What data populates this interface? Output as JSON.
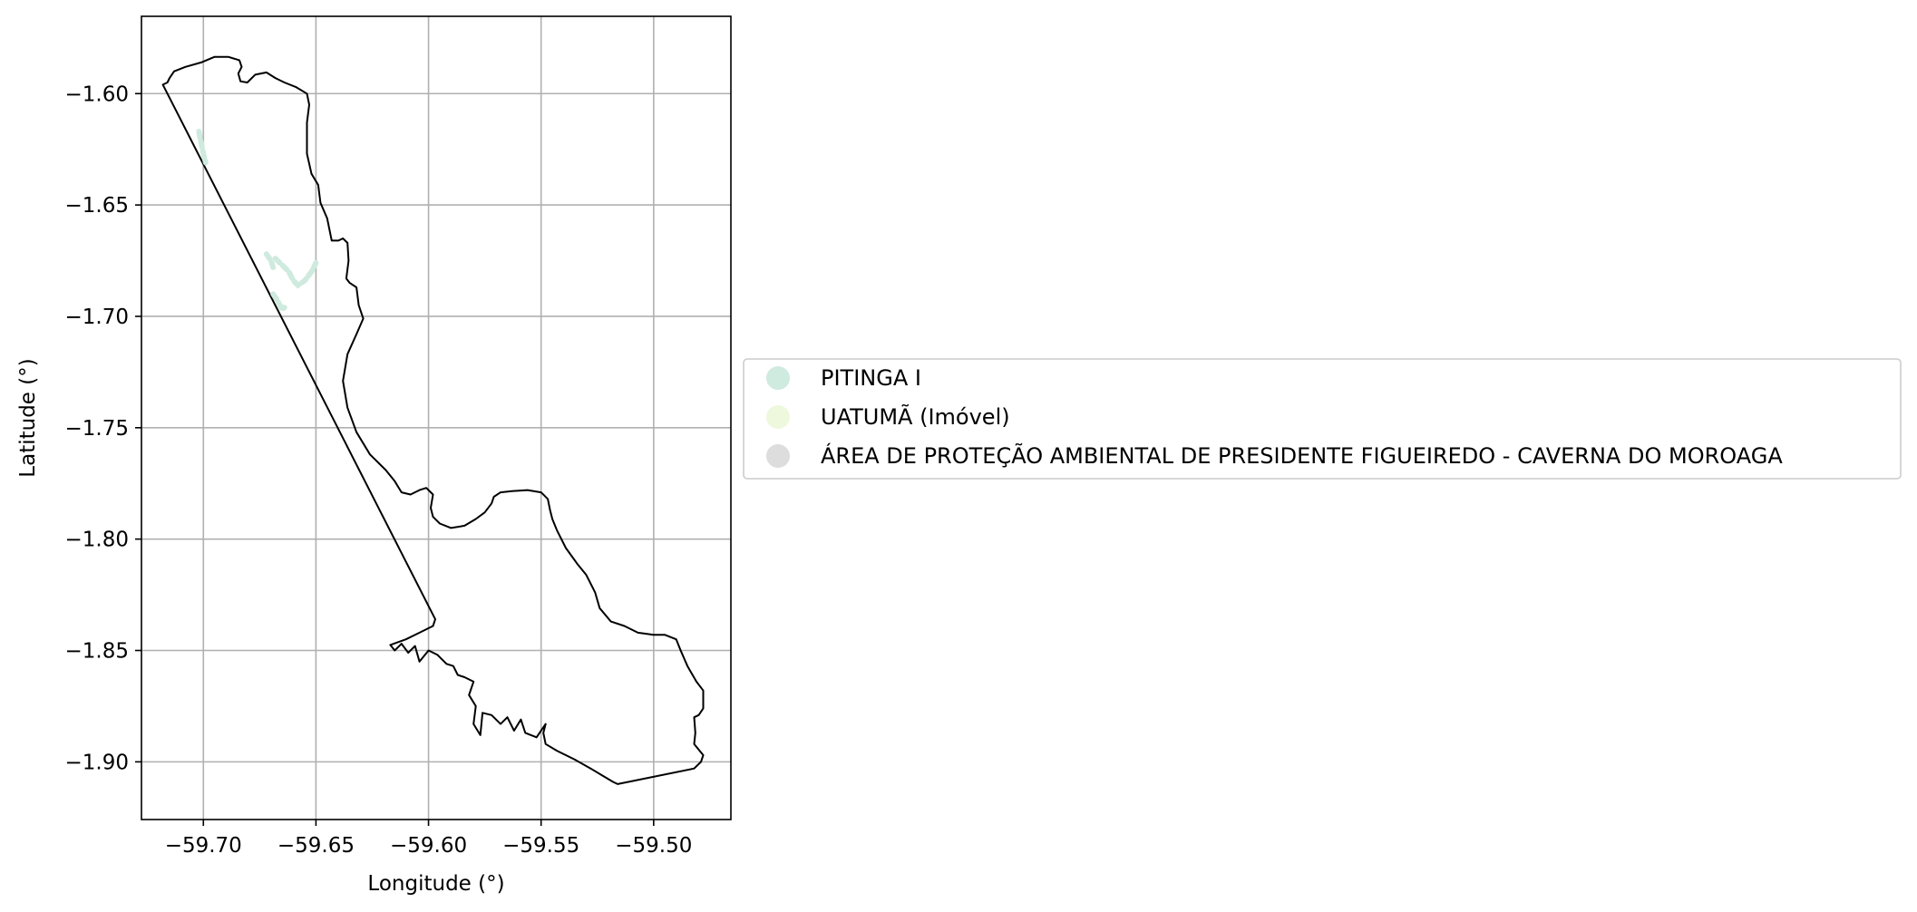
{
  "map": {
    "xlabel": "Longitude (°)",
    "ylabel": "Latitude (°)",
    "xlim": [
      -59.7275,
      -59.4657
    ],
    "ylim": [
      -1.9259,
      -1.5653
    ],
    "grid": true,
    "xticks": [
      -59.7,
      -59.65,
      -59.6,
      -59.55,
      -59.5
    ],
    "yticks": [
      -1.6,
      -1.65,
      -1.7,
      -1.75,
      -1.8,
      -1.85,
      -1.9
    ],
    "xtick_labels": [
      "−59.70",
      "−59.65",
      "−59.60",
      "−59.55",
      "−59.50"
    ],
    "ytick_labels": [
      "−1.60",
      "−1.65",
      "−1.70",
      "−1.75",
      "−1.80",
      "−1.85",
      "−1.90"
    ],
    "legend_position": "center-left outside plot",
    "legend": [
      {
        "label": "PITINGA I",
        "color": "#cfeadf"
      },
      {
        "label": "UATUMÃ (Imóvel)",
        "color": "#eef8dc"
      },
      {
        "label": "ÁREA DE PROTEÇÃO AMBIENTAL DE PRESIDENTE FIGUEIREDO - CAVERNA DO MOROAGA",
        "color": "#dddddd"
      }
    ],
    "boundary_color": "#000000",
    "boundary": [
      [
        -59.718,
        -1.596
      ],
      [
        -59.716,
        -1.595
      ],
      [
        -59.715,
        -1.593
      ],
      [
        -59.713,
        -1.59
      ],
      [
        -59.708,
        -1.588
      ],
      [
        -59.701,
        -1.586
      ],
      [
        -59.695,
        -1.5835
      ],
      [
        -59.689,
        -1.5835
      ],
      [
        -59.684,
        -1.585
      ],
      [
        -59.683,
        -1.588
      ],
      [
        -59.6845,
        -1.591
      ],
      [
        -59.6835,
        -1.5945
      ],
      [
        -59.6805,
        -1.595
      ],
      [
        -59.677,
        -1.5915
      ],
      [
        -59.672,
        -1.5905
      ],
      [
        -59.668,
        -1.593
      ],
      [
        -59.664,
        -1.595
      ],
      [
        -59.659,
        -1.597
      ],
      [
        -59.654,
        -1.6
      ],
      [
        -59.653,
        -1.605
      ],
      [
        -59.654,
        -1.613
      ],
      [
        -59.654,
        -1.627
      ],
      [
        -59.652,
        -1.636
      ],
      [
        -59.649,
        -1.641
      ],
      [
        -59.648,
        -1.649
      ],
      [
        -59.645,
        -1.656
      ],
      [
        -59.643,
        -1.666
      ],
      [
        -59.64,
        -1.666
      ],
      [
        -59.638,
        -1.665
      ],
      [
        -59.636,
        -1.667
      ],
      [
        -59.6355,
        -1.675
      ],
      [
        -59.6365,
        -1.683
      ],
      [
        -59.635,
        -1.685
      ],
      [
        -59.632,
        -1.687
      ],
      [
        -59.631,
        -1.695
      ],
      [
        -59.629,
        -1.701
      ],
      [
        -59.632,
        -1.708
      ],
      [
        -59.636,
        -1.717
      ],
      [
        -59.638,
        -1.729
      ],
      [
        -59.636,
        -1.741
      ],
      [
        -59.632,
        -1.752
      ],
      [
        -59.626,
        -1.762
      ],
      [
        -59.619,
        -1.769
      ],
      [
        -59.615,
        -1.774
      ],
      [
        -59.612,
        -1.779
      ],
      [
        -59.608,
        -1.78
      ],
      [
        -59.604,
        -1.778
      ],
      [
        -59.601,
        -1.777
      ],
      [
        -59.598,
        -1.78
      ],
      [
        -59.599,
        -1.786
      ],
      [
        -59.598,
        -1.79
      ],
      [
        -59.595,
        -1.793
      ],
      [
        -59.59,
        -1.795
      ],
      [
        -59.584,
        -1.794
      ],
      [
        -59.579,
        -1.791
      ],
      [
        -59.575,
        -1.788
      ],
      [
        -59.572,
        -1.784
      ],
      [
        -59.571,
        -1.781
      ],
      [
        -59.568,
        -1.779
      ],
      [
        -59.563,
        -1.7785
      ],
      [
        -59.556,
        -1.778
      ],
      [
        -59.55,
        -1.779
      ],
      [
        -59.547,
        -1.782
      ],
      [
        -59.546,
        -1.787
      ],
      [
        -59.545,
        -1.791
      ],
      [
        -59.543,
        -1.796
      ],
      [
        -59.539,
        -1.804
      ],
      [
        -59.534,
        -1.811
      ],
      [
        -59.53,
        -1.816
      ],
      [
        -59.526,
        -1.824
      ],
      [
        -59.524,
        -1.831
      ],
      [
        -59.519,
        -1.837
      ],
      [
        -59.513,
        -1.839
      ],
      [
        -59.507,
        -1.842
      ],
      [
        -59.5,
        -1.843
      ],
      [
        -59.495,
        -1.843
      ],
      [
        -59.49,
        -1.845
      ],
      [
        -59.488,
        -1.85
      ],
      [
        -59.485,
        -1.857
      ],
      [
        -59.481,
        -1.864
      ],
      [
        -59.478,
        -1.868
      ],
      [
        -59.478,
        -1.876
      ],
      [
        -59.48,
        -1.879
      ],
      [
        -59.482,
        -1.88
      ],
      [
        -59.4815,
        -1.887
      ],
      [
        -59.482,
        -1.892
      ],
      [
        -59.478,
        -1.897
      ],
      [
        -59.479,
        -1.9
      ],
      [
        -59.482,
        -1.903
      ],
      [
        -59.516,
        -1.91
      ],
      [
        -59.518,
        -1.909
      ],
      [
        -59.523,
        -1.906
      ],
      [
        -59.528,
        -1.903
      ],
      [
        -59.535,
        -1.899
      ],
      [
        -59.543,
        -1.895
      ],
      [
        -59.548,
        -1.892
      ],
      [
        -59.549,
        -1.887
      ],
      [
        -59.548,
        -1.883
      ],
      [
        -59.552,
        -1.889
      ],
      [
        -59.557,
        -1.887
      ],
      [
        -59.559,
        -1.881
      ],
      [
        -59.562,
        -1.886
      ],
      [
        -59.565,
        -1.88
      ],
      [
        -59.568,
        -1.883
      ],
      [
        -59.572,
        -1.879
      ],
      [
        -59.576,
        -1.878
      ],
      [
        -59.577,
        -1.888
      ],
      [
        -59.58,
        -1.883
      ],
      [
        -59.579,
        -1.875
      ],
      [
        -59.582,
        -1.87
      ],
      [
        -59.58,
        -1.864
      ],
      [
        -59.584,
        -1.862
      ],
      [
        -59.587,
        -1.861
      ],
      [
        -59.589,
        -1.857
      ],
      [
        -59.592,
        -1.856
      ],
      [
        -59.596,
        -1.852
      ],
      [
        -59.6,
        -1.85
      ],
      [
        -59.604,
        -1.855
      ],
      [
        -59.606,
        -1.848
      ],
      [
        -59.609,
        -1.851
      ],
      [
        -59.612,
        -1.847
      ],
      [
        -59.615,
        -1.85
      ],
      [
        -59.617,
        -1.8475
      ],
      [
        -59.61,
        -1.845
      ],
      [
        -59.604,
        -1.842
      ],
      [
        -59.598,
        -1.839
      ],
      [
        -59.597,
        -1.836
      ],
      [
        -59.718,
        -1.596
      ]
    ],
    "pitinga_strokes": [
      [
        [
          -59.702,
          -1.617
        ],
        [
          -59.701,
          -1.622
        ],
        [
          -59.7,
          -1.627
        ],
        [
          -59.699,
          -1.631
        ]
      ],
      [
        [
          -59.672,
          -1.672
        ],
        [
          -59.67,
          -1.675
        ],
        [
          -59.669,
          -1.678
        ]
      ],
      [
        [
          -59.668,
          -1.674
        ],
        [
          -59.665,
          -1.677
        ],
        [
          -59.662,
          -1.68
        ],
        [
          -59.66,
          -1.684
        ],
        [
          -59.658,
          -1.686
        ],
        [
          -59.655,
          -1.684
        ],
        [
          -59.652,
          -1.68
        ],
        [
          -59.65,
          -1.676
        ]
      ],
      [
        [
          -59.669,
          -1.69
        ],
        [
          -59.667,
          -1.693
        ],
        [
          -59.665,
          -1.697
        ],
        [
          -59.664,
          -1.696
        ]
      ]
    ]
  }
}
